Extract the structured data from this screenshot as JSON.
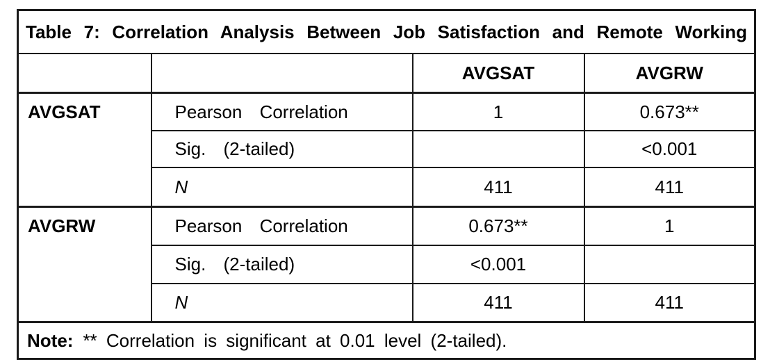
{
  "page": {
    "background": "#ffffff",
    "text_color": "#000000",
    "border_color": "#1a1a1a"
  },
  "table": {
    "title": "Table 7: Correlation Analysis Between Job Satisfaction and Remote Working",
    "header": {
      "col3": "AVGSAT",
      "col4": "AVGRW"
    },
    "groups": [
      {
        "label": "AVGSAT",
        "rows": [
          {
            "label": "Pearson Correlation",
            "avgsat": "1",
            "avgrw": "0.673**"
          },
          {
            "label": "Sig. (2-tailed)",
            "avgsat": "",
            "avgrw": "<0.001"
          },
          {
            "label": "N",
            "avgsat": "411",
            "avgrw": "411"
          }
        ]
      },
      {
        "label": "AVGRW",
        "rows": [
          {
            "label": "Pearson Correlation",
            "avgsat": "0.673**",
            "avgrw": "1"
          },
          {
            "label": "Sig. (2-tailed)",
            "avgsat": "<0.001",
            "avgrw": ""
          },
          {
            "label": "N",
            "avgsat": "411",
            "avgrw": "411"
          }
        ]
      }
    ],
    "note": {
      "prefix": "Note:",
      "text": "** Correlation is significant at 0.01 level (2-tailed)."
    }
  }
}
